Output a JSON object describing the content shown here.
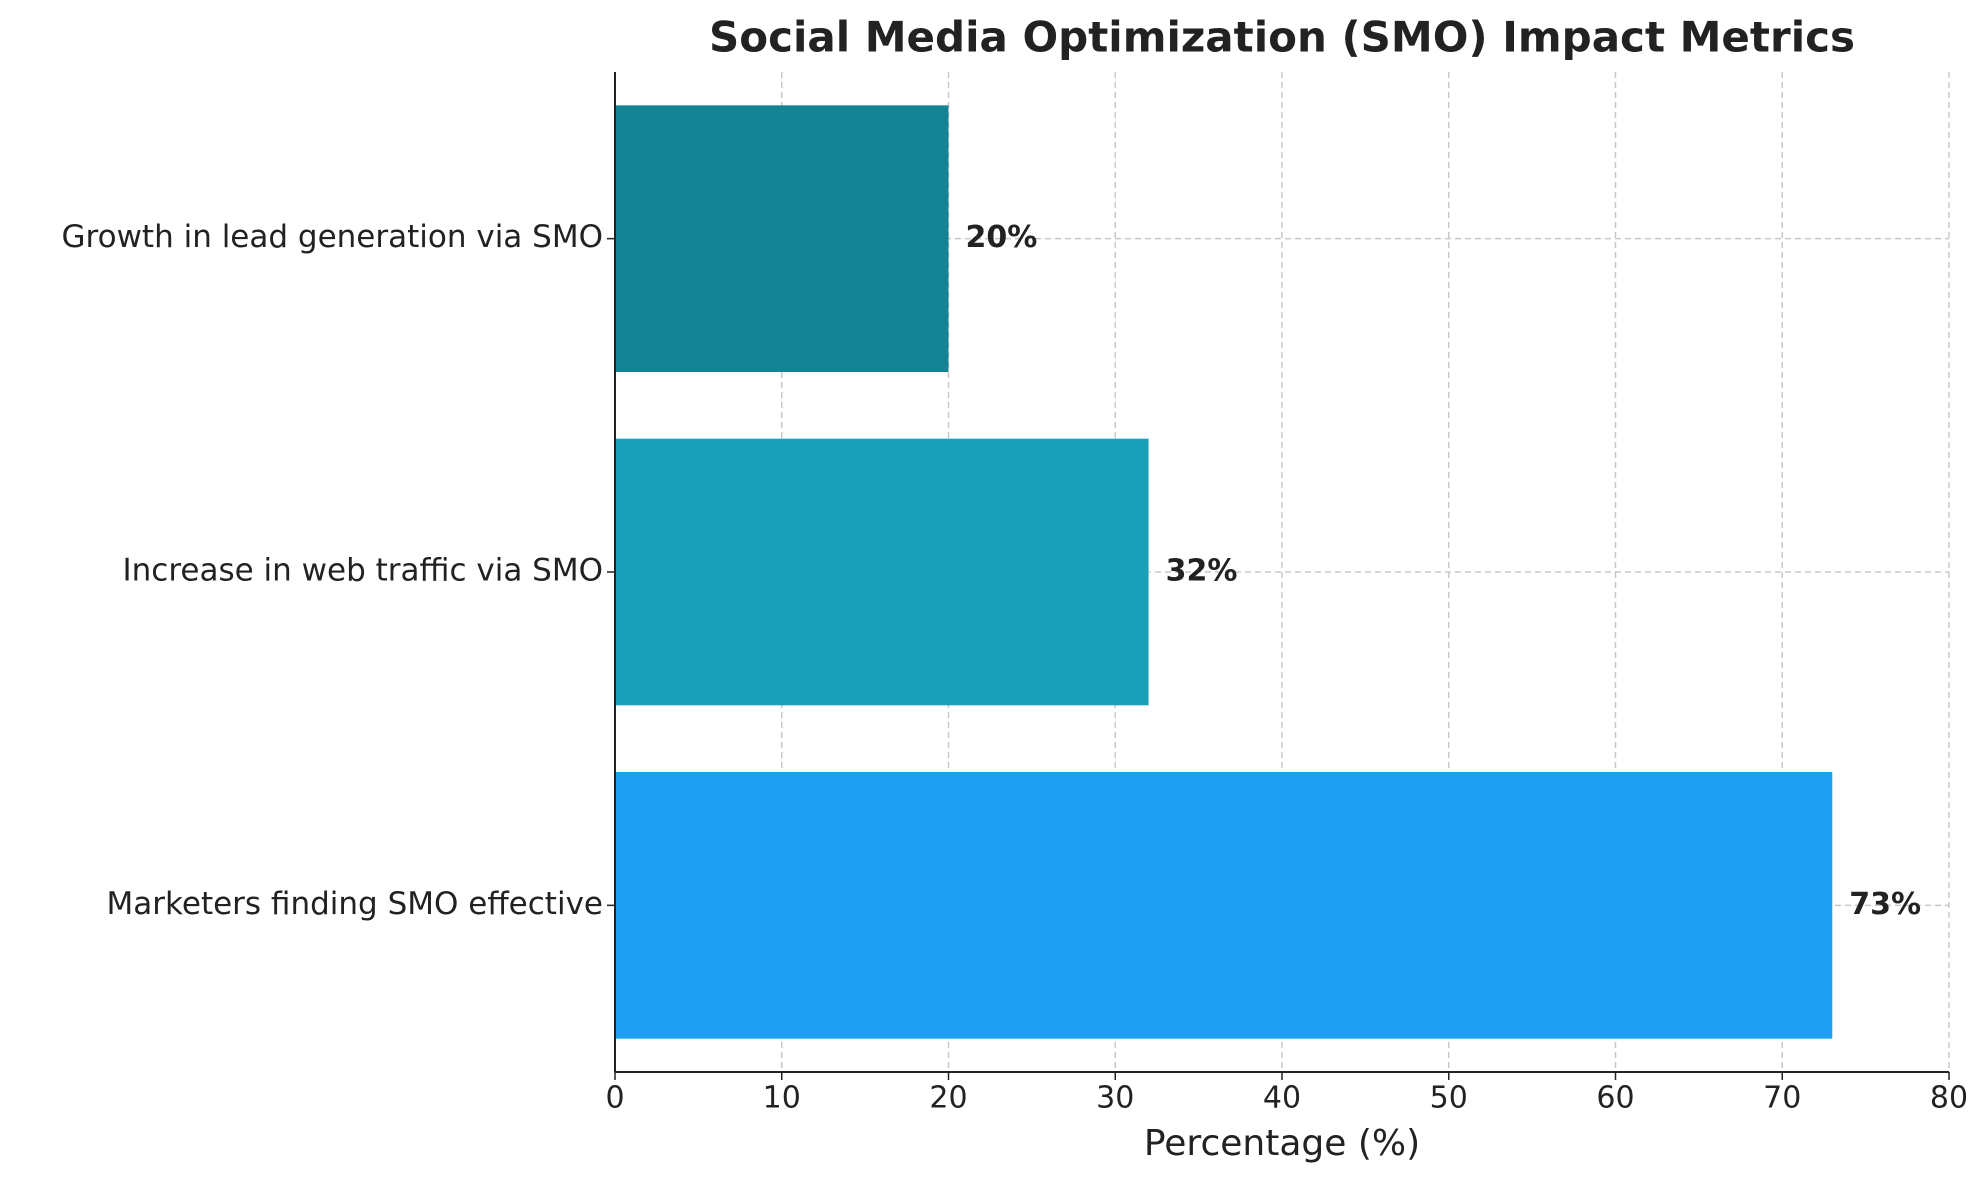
{
  "chart_data": {
    "type": "barh",
    "title": "Social Media Optimization (SMO) Impact Metrics",
    "categories": [
      "Marketers finding SMO effective",
      "Increase in web traffic via SMO",
      "Growth in lead generation via SMO"
    ],
    "values": [
      73,
      32,
      20
    ],
    "value_labels": [
      "73%",
      "32%",
      "20%"
    ],
    "colors": [
      "#1e9ff2",
      "#1aa0b8",
      "#148494"
    ],
    "xlabel": "Percentage (%)",
    "xlim": [
      0,
      80
    ],
    "xticks": [
      0,
      10,
      20,
      30,
      40,
      50,
      60,
      70,
      80
    ],
    "grid": true
  }
}
